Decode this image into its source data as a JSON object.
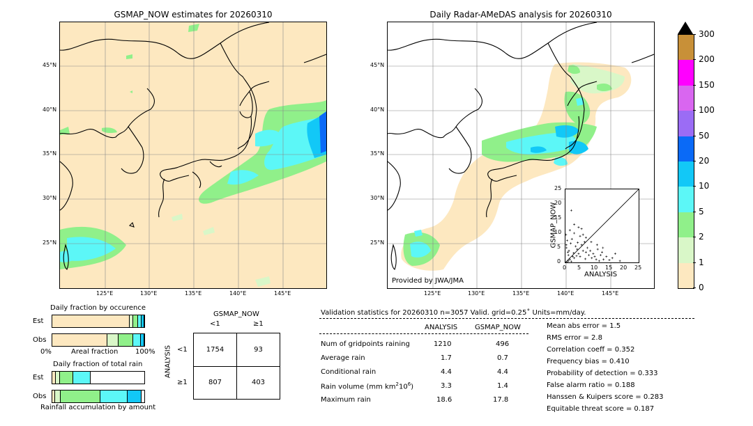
{
  "left_map": {
    "title": "GSMAP_NOW estimates for 20260310",
    "lat_labels": [
      "45°N",
      "40°N",
      "35°N",
      "30°N",
      "25°N"
    ],
    "lon_labels": [
      "125°E",
      "130°E",
      "135°E",
      "140°E",
      "145°E"
    ]
  },
  "right_map": {
    "title": "Daily Radar-AMeDAS analysis for 20260310",
    "lat_labels": [
      "45°N",
      "40°N",
      "35°N",
      "30°N",
      "25°N"
    ],
    "lon_labels": [
      "125°E",
      "130°E",
      "135°E",
      "140°E",
      "145°E"
    ],
    "provided_by": "Provided by JWA/JMA"
  },
  "colorbar": {
    "labels": [
      "0",
      "1",
      "2",
      "5",
      "10",
      "20",
      "50",
      "100",
      "150",
      "200",
      "300"
    ],
    "colors": [
      "#fde8c0",
      "#d9f7c8",
      "#90f08a",
      "#5cf7f7",
      "#12c8f7",
      "#0a6af7",
      "#9b6cf5",
      "#d966f0",
      "#ff00ff",
      "#c89038"
    ],
    "extend_color": "#000000"
  },
  "scatter_inset": {
    "xlabel": "ANALYSIS",
    "ylabel": "GSMAP_NOW",
    "ticks": [
      "0",
      "5",
      "10",
      "15",
      "20",
      "25"
    ],
    "lim": [
      0,
      25
    ]
  },
  "chart_data": [
    {
      "type": "scatter",
      "title": "",
      "xlabel": "ANALYSIS",
      "ylabel": "GSMAP_NOW",
      "xlim": [
        0,
        25
      ],
      "ylim": [
        0,
        25
      ],
      "reference_line": "y = x",
      "points": [
        [
          0.5,
          0.2
        ],
        [
          1.0,
          0.5
        ],
        [
          1.5,
          1.0
        ],
        [
          2.0,
          0.3
        ],
        [
          2.5,
          2.0
        ],
        [
          3.0,
          1.5
        ],
        [
          0.8,
          3.5
        ],
        [
          1.2,
          4.0
        ],
        [
          0.3,
          6.0
        ],
        [
          0.6,
          7.5
        ],
        [
          1.8,
          6.5
        ],
        [
          2.2,
          8.0
        ],
        [
          3.5,
          5.5
        ],
        [
          4.0,
          4.5
        ],
        [
          4.5,
          3.0
        ],
        [
          5.0,
          2.0
        ],
        [
          5.5,
          6.0
        ],
        [
          6.0,
          4.0
        ],
        [
          6.5,
          7.0
        ],
        [
          7.0,
          3.5
        ],
        [
          7.5,
          5.0
        ],
        [
          8.0,
          2.5
        ],
        [
          8.5,
          4.0
        ],
        [
          9.0,
          1.5
        ],
        [
          9.5,
          3.0
        ],
        [
          10.0,
          2.0
        ],
        [
          10.5,
          1.0
        ],
        [
          11.0,
          4.5
        ],
        [
          11.5,
          0.5
        ],
        [
          12.0,
          2.5
        ],
        [
          12.5,
          3.5
        ],
        [
          13.0,
          1.0
        ],
        [
          14.0,
          2.0
        ],
        [
          15.0,
          0.8
        ],
        [
          16.0,
          1.5
        ],
        [
          17.0,
          3.0
        ],
        [
          18.6,
          0.5
        ],
        [
          2.0,
          17.8
        ],
        [
          1.5,
          11.0
        ],
        [
          3.0,
          10.0
        ],
        [
          5.0,
          9.0
        ],
        [
          4.5,
          12.0
        ],
        [
          3.0,
          13.0
        ],
        [
          5.5,
          11.5
        ],
        [
          6.0,
          9.5
        ],
        [
          7.0,
          8.5
        ],
        [
          0.2,
          9.5
        ],
        [
          0.4,
          5.0
        ],
        [
          1.0,
          2.5
        ],
        [
          2.8,
          3.2
        ],
        [
          3.8,
          2.2
        ],
        [
          4.2,
          6.8
        ],
        [
          6.8,
          1.2
        ],
        [
          8.8,
          7.0
        ],
        [
          10.8,
          6.0
        ],
        [
          12.8,
          5.0
        ]
      ]
    },
    {
      "type": "bar",
      "title": "Daily fraction by occurence",
      "orientation": "horizontal-stacked",
      "categories": [
        "Est",
        "Obs"
      ],
      "series": [
        {
          "color": "#fde8c0",
          "values": [
            0.84,
            0.6
          ]
        },
        {
          "color": "#d9f7c8",
          "values": [
            0.04,
            0.12
          ]
        },
        {
          "color": "#90f08a",
          "values": [
            0.05,
            0.16
          ]
        },
        {
          "color": "#5cf7f7",
          "values": [
            0.04,
            0.08
          ]
        },
        {
          "color": "#12c8f7",
          "values": [
            0.03,
            0.04
          ]
        }
      ],
      "xtick_labels": [
        "0%",
        "100%"
      ],
      "xlabel": "Areal fraction"
    },
    {
      "type": "bar",
      "title": "Daily fraction of total rain",
      "orientation": "horizontal-stacked",
      "categories": [
        "Est",
        "Obs"
      ],
      "series": [
        {
          "color": "#fde8c0",
          "values": [
            0.04,
            0.03
          ]
        },
        {
          "color": "#d9f7c8",
          "values": [
            0.04,
            0.06
          ]
        },
        {
          "color": "#90f08a",
          "values": [
            0.15,
            0.43
          ]
        },
        {
          "color": "#5cf7f7",
          "values": [
            0.19,
            0.3
          ]
        },
        {
          "color": "#12c8f7",
          "values": [
            0.0,
            0.15
          ]
        }
      ],
      "xlabel": "Rainfall accumulation by amount"
    },
    {
      "type": "table",
      "title": "GSMAP_NOW",
      "row_header": "ANALYSIS",
      "col_labels": [
        "<1",
        "≥1"
      ],
      "row_labels": [
        "<1",
        "≥1"
      ],
      "cells": [
        [
          "1754",
          "93"
        ],
        [
          "807",
          "403"
        ]
      ]
    },
    {
      "type": "table",
      "title": "Validation statistics for 20260310  n=3057 Valid. grid=0.25° Units=mm/day.",
      "columns": [
        "ANALYSIS",
        "GSMAP_NOW"
      ],
      "rows": [
        {
          "label": "Num of gridpoints raining",
          "analysis": "1210",
          "gsmap": "496"
        },
        {
          "label": "Average rain",
          "analysis": "1.7",
          "gsmap": "0.7"
        },
        {
          "label": "Conditional rain",
          "analysis": "4.4",
          "gsmap": "4.4"
        },
        {
          "label": "Rain volume (mm km²10⁶)",
          "analysis": "3.3",
          "gsmap": "1.4"
        },
        {
          "label": "Maximum rain",
          "analysis": "18.6",
          "gsmap": "17.8"
        }
      ],
      "scores": [
        "Mean abs error =    1.5",
        "RMS error =    2.8",
        "Correlation coeff =  0.352",
        "Frequency bias =  0.410",
        "Probability of detection =  0.333",
        "False alarm ratio =  0.188",
        "Hanssen & Kuipers score =  0.283",
        "Equitable threat score =  0.187"
      ]
    }
  ],
  "occ": {
    "title": "Daily fraction by occurence",
    "est": "Est",
    "obs": "Obs",
    "x0": "0%",
    "x1": "100%",
    "xlabel": "Areal fraction"
  },
  "tot": {
    "title": "Daily fraction of total rain",
    "est": "Est",
    "obs": "Obs",
    "xlabel": "Rainfall accumulation by amount"
  },
  "ct": {
    "title": "GSMAP_NOW",
    "col1": "<1",
    "col2": "≥1",
    "row1": "<1",
    "row2": "≥1",
    "side": "ANALYSIS",
    "c11": "1754",
    "c12": "93",
    "c21": "807",
    "c22": "403"
  },
  "vs": {
    "title": "Validation statistics for 20260310  n=3057 Valid. grid=0.25˚ Units=mm/day.",
    "col_a": "ANALYSIS",
    "col_g": "GSMAP_NOW",
    "r1": "Num of gridpoints raining",
    "r1a": "1210",
    "r1g": "496",
    "r2": "Average rain",
    "r2a": "1.7",
    "r2g": "0.7",
    "r3": "Conditional rain",
    "r3a": "4.4",
    "r3g": "4.4",
    "r4": "Rain volume (mm km",
    "r4a": "3.3",
    "r4g": "1.4",
    "r5": "Maximum rain",
    "r5a": "18.6",
    "r5g": "17.8",
    "s1": "Mean abs error =    1.5",
    "s2": "RMS error =    2.8",
    "s3": "Correlation coeff =  0.352",
    "s4": "Frequency bias =  0.410",
    "s5": "Probability of detection =  0.333",
    "s6": "False alarm ratio =  0.188",
    "s7": "Hanssen & Kuipers score =  0.283",
    "s8": "Equitable threat score =  0.187"
  }
}
